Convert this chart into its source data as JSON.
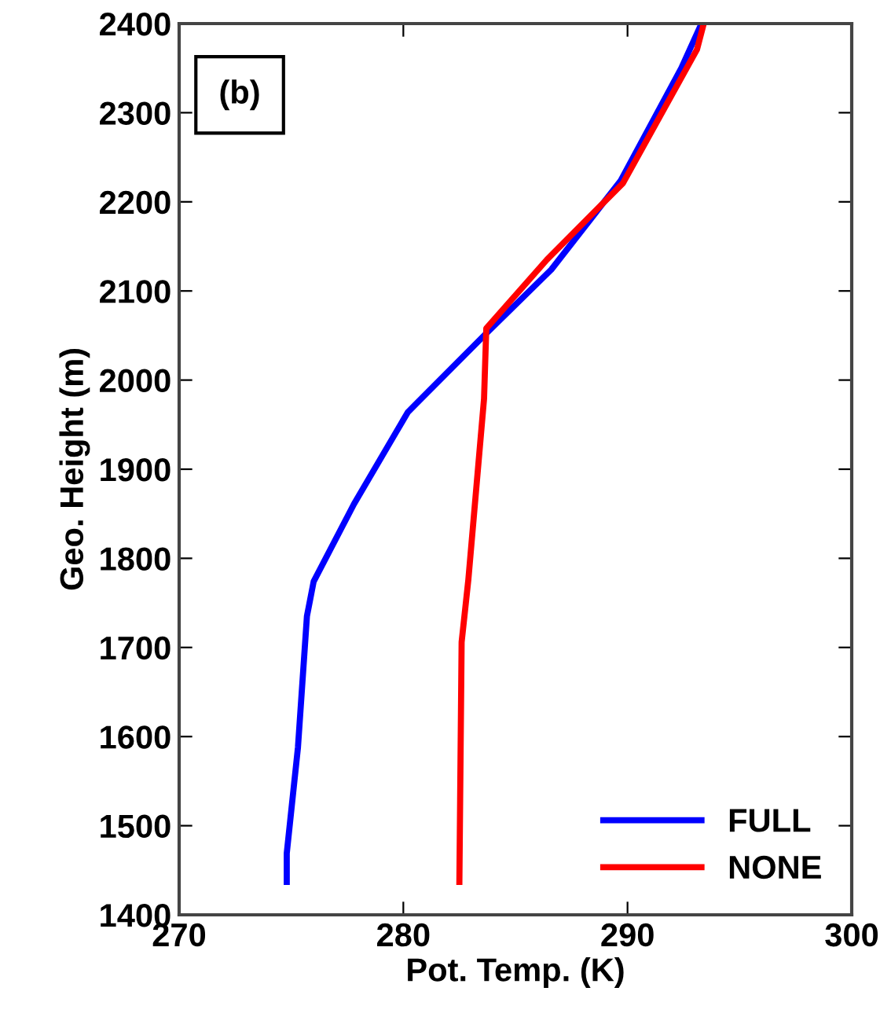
{
  "chart_data": {
    "type": "line",
    "xlabel": "Pot. Temp. (K)",
    "ylabel": "Geo. Height (m)",
    "annotations": [
      "(b)"
    ],
    "xlim": [
      270,
      300
    ],
    "xticks": [
      270,
      280,
      290,
      300
    ],
    "ylim": [
      1400,
      2400
    ],
    "yticks": [
      1400,
      1500,
      1600,
      1700,
      1800,
      1900,
      2000,
      2100,
      2200,
      2300,
      2400
    ],
    "grid": false,
    "legend": "bottom right",
    "marker": "none",
    "line_style": "solid",
    "series": [
      {
        "name": "FULL",
        "color": "#0000ff",
        "x": [
          274.8,
          274.8,
          275.3,
          275.7,
          276.0,
          277.8,
          280.2,
          283.6,
          286.6,
          289.7,
          292.4,
          293.3
        ],
        "values": [
          1437,
          1469,
          1588,
          1735,
          1774,
          1861,
          1964,
          2050,
          2124,
          2224,
          2350,
          2400
        ]
      },
      {
        "name": "NONE",
        "color": "#ff0000",
        "x": [
          282.5,
          282.6,
          282.9,
          283.6,
          283.7,
          286.4,
          289.8,
          293.1,
          293.4
        ],
        "values": [
          1437,
          1706,
          1776,
          1979,
          2058,
          2135,
          2221,
          2371,
          2400
        ]
      }
    ]
  }
}
